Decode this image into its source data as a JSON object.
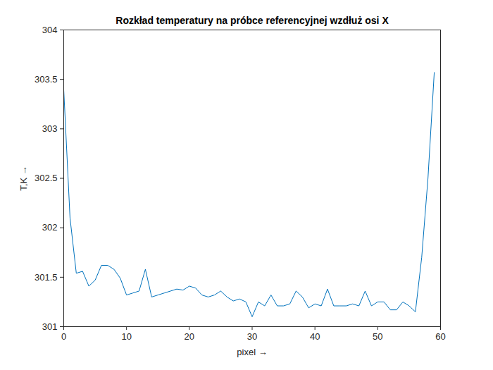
{
  "chart_data": {
    "type": "line",
    "title": "Rozkład temperatury na próbce referencyjnej wzdłuż osi X",
    "x_label": "pixel",
    "y_label": "T,K",
    "x": [
      0,
      1,
      2,
      3,
      4,
      5,
      6,
      7,
      8,
      9,
      10,
      11,
      12,
      13,
      14,
      15,
      16,
      17,
      18,
      19,
      20,
      21,
      22,
      23,
      24,
      25,
      26,
      27,
      28,
      29,
      30,
      31,
      32,
      33,
      34,
      35,
      36,
      37,
      38,
      39,
      40,
      41,
      42,
      43,
      44,
      45,
      46,
      47,
      48,
      49,
      50,
      51,
      52,
      53,
      54,
      55,
      56,
      57,
      58,
      59
    ],
    "values": [
      303.4,
      302.1,
      301.54,
      301.56,
      301.41,
      301.47,
      301.62,
      301.62,
      301.58,
      301.49,
      301.32,
      301.34,
      301.36,
      301.58,
      301.3,
      301.32,
      301.34,
      301.36,
      301.38,
      301.37,
      301.41,
      301.39,
      301.32,
      301.3,
      301.32,
      301.36,
      301.3,
      301.26,
      301.28,
      301.25,
      301.1,
      301.25,
      301.21,
      301.32,
      301.21,
      301.21,
      301.23,
      301.36,
      301.3,
      301.19,
      301.23,
      301.21,
      301.38,
      301.21,
      301.21,
      301.21,
      301.23,
      301.21,
      301.36,
      301.21,
      301.25,
      301.25,
      301.17,
      301.17,
      301.25,
      301.21,
      301.15,
      301.7,
      302.5,
      303.57
    ],
    "color": "#0072bd",
    "xlim": [
      0,
      60
    ],
    "xticks": [
      0,
      10,
      20,
      30,
      40,
      50,
      60
    ],
    "ylim": [
      301,
      304
    ],
    "yticks": [
      301,
      301.5,
      302,
      302.5,
      303,
      303.5,
      304
    ],
    "grid": false
  }
}
